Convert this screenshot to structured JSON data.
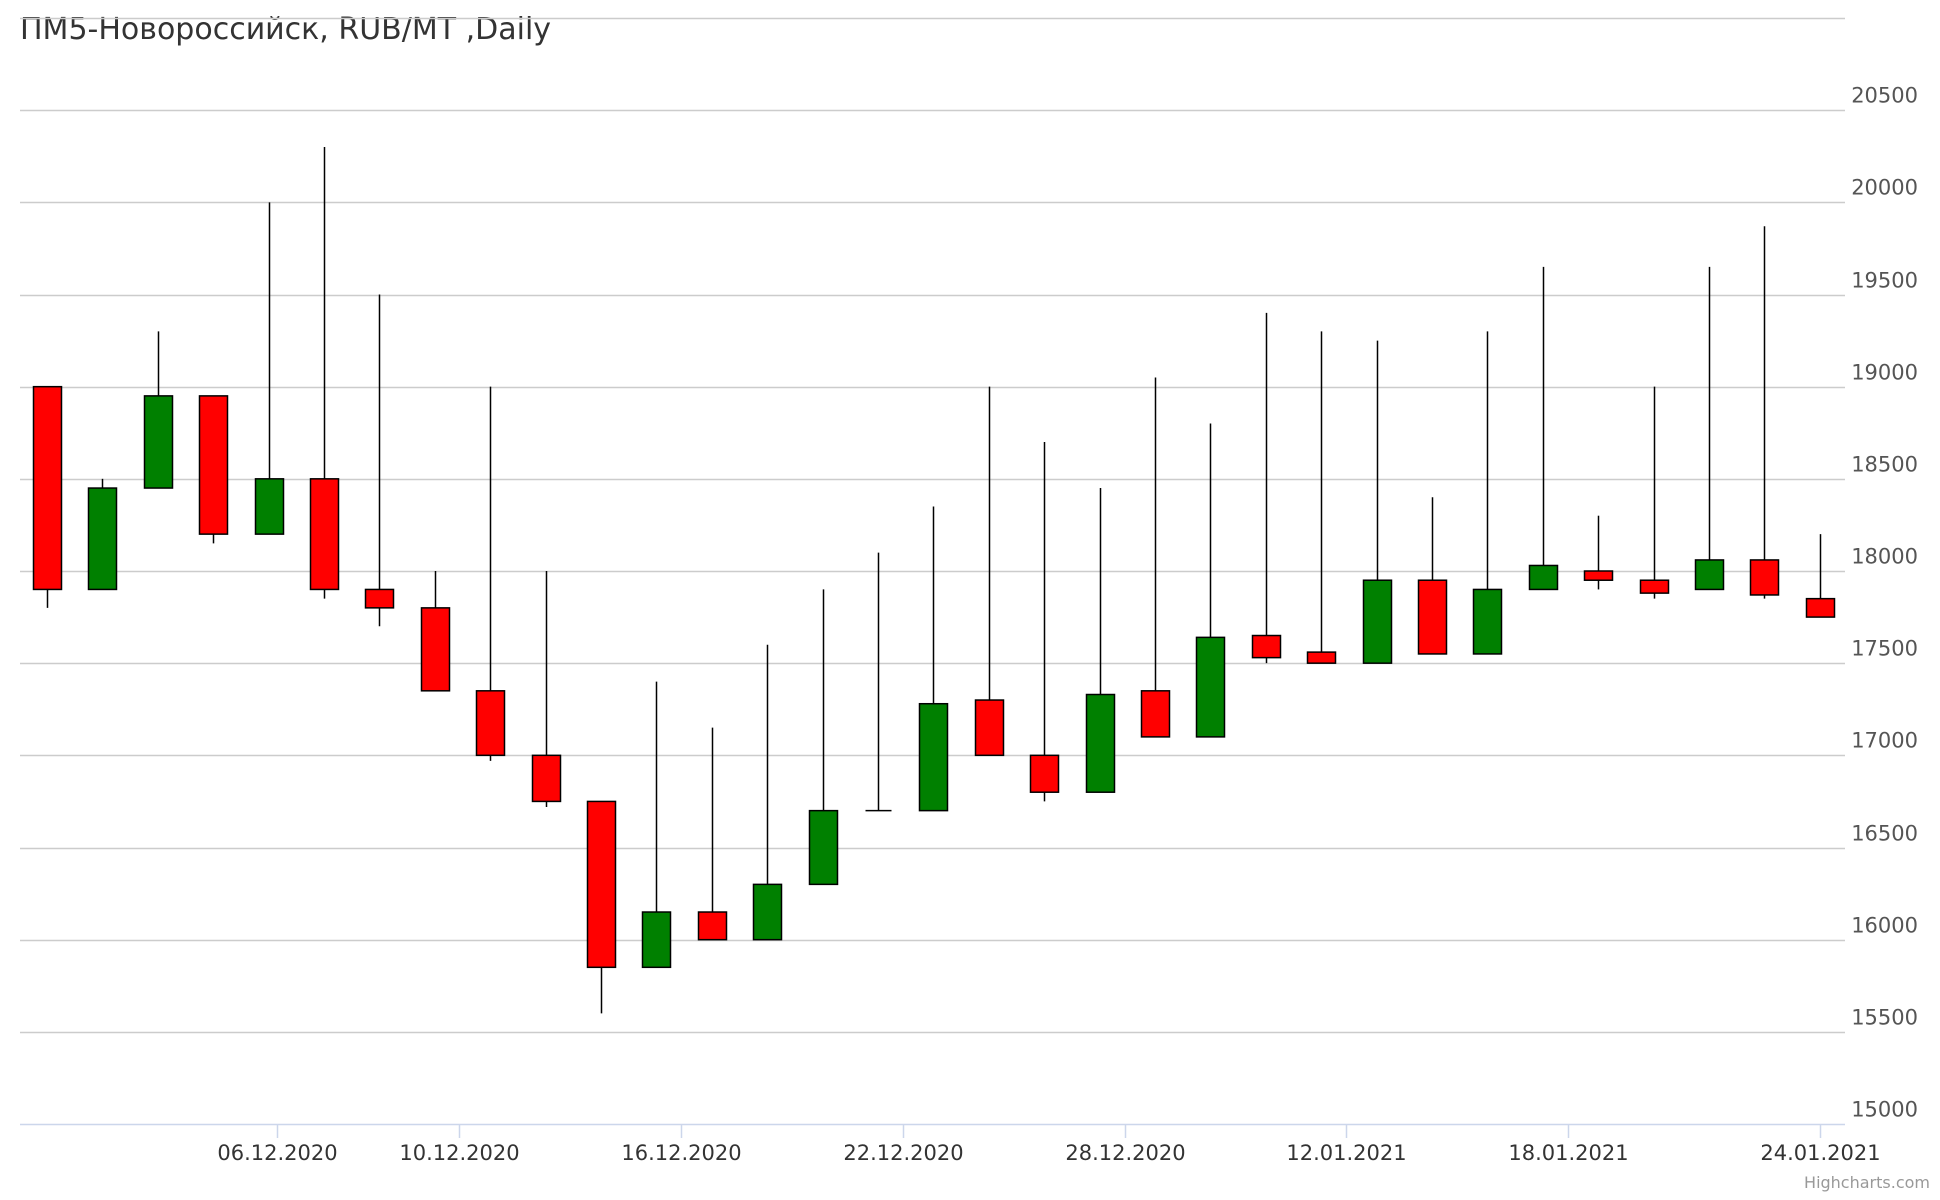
{
  "chart_data": {
    "type": "candlestick",
    "title": "ПМ5-Новороссийск, RUB/MT ,Daily",
    "credits": "Highcharts.com",
    "ylim": [
      15000,
      21000
    ],
    "y_ticks": [
      15000,
      15500,
      16000,
      16500,
      17000,
      17500,
      18000,
      18500,
      19000,
      19500,
      20000,
      20500
    ],
    "x_ticks": [
      {
        "label": "06.12.2020",
        "at": 4.15
      },
      {
        "label": "10.12.2020",
        "at": 7.43
      },
      {
        "label": "16.12.2020",
        "at": 11.45
      },
      {
        "label": "22.12.2020",
        "at": 15.45
      },
      {
        "label": "28.12.2020",
        "at": 19.45
      },
      {
        "label": "12.01.2021",
        "at": 23.45
      },
      {
        "label": "18.01.2021",
        "at": 27.45
      },
      {
        "label": "24.01.2021",
        "at": 32.0
      }
    ],
    "candles": [
      {
        "open": 19000,
        "high": 19000,
        "low": 17800,
        "close": 17900
      },
      {
        "open": 17900,
        "high": 18500,
        "low": 17900,
        "close": 18450
      },
      {
        "open": 18450,
        "high": 19300,
        "low": 18450,
        "close": 18950
      },
      {
        "open": 18950,
        "high": 18950,
        "low": 18150,
        "close": 18200
      },
      {
        "open": 18200,
        "high": 20000,
        "low": 18200,
        "close": 18500
      },
      {
        "open": 18500,
        "high": 20300,
        "low": 17850,
        "close": 17900
      },
      {
        "open": 17900,
        "high": 19500,
        "low": 17700,
        "close": 17800
      },
      {
        "open": 17800,
        "high": 18000,
        "low": 17350,
        "close": 17350
      },
      {
        "open": 17350,
        "high": 19000,
        "low": 16970,
        "close": 17000
      },
      {
        "open": 17000,
        "high": 18000,
        "low": 16720,
        "close": 16750
      },
      {
        "open": 16750,
        "high": 16750,
        "low": 15600,
        "close": 15850
      },
      {
        "open": 15850,
        "high": 17400,
        "low": 15850,
        "close": 16150
      },
      {
        "open": 16150,
        "high": 17150,
        "low": 16000,
        "close": 16000
      },
      {
        "open": 16000,
        "high": 17600,
        "low": 16000,
        "close": 16300
      },
      {
        "open": 16300,
        "high": 17900,
        "low": 16300,
        "close": 16700
      },
      {
        "open": 16700,
        "high": 18100,
        "low": 16700,
        "close": 16700
      },
      {
        "open": 16700,
        "high": 18350,
        "low": 16700,
        "close": 17280
      },
      {
        "open": 17300,
        "high": 19000,
        "low": 17000,
        "close": 17000
      },
      {
        "open": 17000,
        "high": 18700,
        "low": 16750,
        "close": 16800
      },
      {
        "open": 16800,
        "high": 18450,
        "low": 16800,
        "close": 17330
      },
      {
        "open": 17350,
        "high": 19050,
        "low": 17100,
        "close": 17100
      },
      {
        "open": 17100,
        "high": 18800,
        "low": 17100,
        "close": 17640
      },
      {
        "open": 17650,
        "high": 19400,
        "low": 17500,
        "close": 17530
      },
      {
        "open": 17560,
        "high": 19300,
        "low": 17500,
        "close": 17500
      },
      {
        "open": 17500,
        "high": 19250,
        "low": 17500,
        "close": 17950
      },
      {
        "open": 17950,
        "high": 18400,
        "low": 17550,
        "close": 17550
      },
      {
        "open": 17550,
        "high": 19300,
        "low": 17550,
        "close": 17900
      },
      {
        "open": 17900,
        "high": 19650,
        "low": 17900,
        "close": 18030
      },
      {
        "open": 18000,
        "high": 18300,
        "low": 17900,
        "close": 17950
      },
      {
        "open": 17950,
        "high": 19000,
        "low": 17850,
        "close": 17880
      },
      {
        "open": 17900,
        "high": 19650,
        "low": 17900,
        "close": 18060
      },
      {
        "open": 18060,
        "high": 19870,
        "low": 17850,
        "close": 17870
      },
      {
        "open": 17850,
        "high": 18200,
        "low": 17750,
        "close": 17750
      }
    ],
    "colors": {
      "up": "#008000",
      "down": "#ff0000",
      "wick": "#000000",
      "grid": "#cccccc",
      "axis": "#ccd6eb"
    }
  }
}
